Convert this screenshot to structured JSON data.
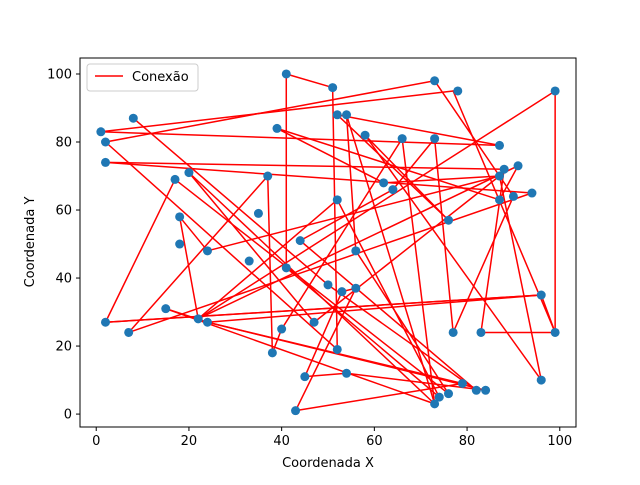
{
  "chart_data": {
    "type": "scatter",
    "title": "",
    "xlabel": "Coordenada X",
    "ylabel": "Coordenada Y",
    "xlim": [
      -3.5,
      103.5
    ],
    "ylim": [
      -3.8,
      104.7
    ],
    "xticks": [
      0,
      20,
      40,
      60,
      80,
      100
    ],
    "yticks": [
      0,
      20,
      40,
      60,
      80,
      100
    ],
    "grid": false,
    "legend": {
      "placement": "top-left",
      "entries": [
        "Conexão"
      ]
    },
    "marker_color": "#1f77b4",
    "line_color": "#ff0000",
    "points": [
      {
        "x": 41,
        "y": 100
      },
      {
        "x": 51,
        "y": 96
      },
      {
        "x": 73,
        "y": 98
      },
      {
        "x": 78,
        "y": 95
      },
      {
        "x": 99,
        "y": 95
      },
      {
        "x": 8,
        "y": 87
      },
      {
        "x": 1,
        "y": 83
      },
      {
        "x": 2,
        "y": 80
      },
      {
        "x": 39,
        "y": 84
      },
      {
        "x": 52,
        "y": 88
      },
      {
        "x": 54,
        "y": 88
      },
      {
        "x": 58,
        "y": 82
      },
      {
        "x": 66,
        "y": 81
      },
      {
        "x": 73,
        "y": 81
      },
      {
        "x": 87,
        "y": 79
      },
      {
        "x": 2,
        "y": 74
      },
      {
        "x": 91,
        "y": 73
      },
      {
        "x": 88,
        "y": 72
      },
      {
        "x": 87,
        "y": 70
      },
      {
        "x": 20,
        "y": 71
      },
      {
        "x": 17,
        "y": 69
      },
      {
        "x": 37,
        "y": 70
      },
      {
        "x": 62,
        "y": 68
      },
      {
        "x": 64,
        "y": 66
      },
      {
        "x": 94,
        "y": 65
      },
      {
        "x": 90,
        "y": 64
      },
      {
        "x": 87,
        "y": 63
      },
      {
        "x": 52,
        "y": 63
      },
      {
        "x": 35,
        "y": 59
      },
      {
        "x": 18,
        "y": 58
      },
      {
        "x": 76,
        "y": 57
      },
      {
        "x": 44,
        "y": 51
      },
      {
        "x": 18,
        "y": 50
      },
      {
        "x": 24,
        "y": 48
      },
      {
        "x": 56,
        "y": 48
      },
      {
        "x": 33,
        "y": 45
      },
      {
        "x": 41,
        "y": 43
      },
      {
        "x": 50,
        "y": 38
      },
      {
        "x": 56,
        "y": 37
      },
      {
        "x": 53,
        "y": 36
      },
      {
        "x": 96,
        "y": 35
      },
      {
        "x": 15,
        "y": 31
      },
      {
        "x": 2,
        "y": 27
      },
      {
        "x": 22,
        "y": 28
      },
      {
        "x": 24,
        "y": 27
      },
      {
        "x": 47,
        "y": 27
      },
      {
        "x": 40,
        "y": 25
      },
      {
        "x": 7,
        "y": 24
      },
      {
        "x": 77,
        "y": 24
      },
      {
        "x": 83,
        "y": 24
      },
      {
        "x": 99,
        "y": 24
      },
      {
        "x": 38,
        "y": 18
      },
      {
        "x": 52,
        "y": 19
      },
      {
        "x": 45,
        "y": 11
      },
      {
        "x": 54,
        "y": 12
      },
      {
        "x": 96,
        "y": 10
      },
      {
        "x": 79,
        "y": 9
      },
      {
        "x": 82,
        "y": 7
      },
      {
        "x": 84,
        "y": 7
      },
      {
        "x": 76,
        "y": 6
      },
      {
        "x": 74,
        "y": 5
      },
      {
        "x": 73,
        "y": 3
      },
      {
        "x": 43,
        "y": 1
      }
    ],
    "path": [
      [
        2,
        27
      ],
      [
        96,
        35
      ],
      [
        99,
        24
      ],
      [
        77,
        95
      ],
      [
        1,
        83
      ],
      [
        87,
        79
      ],
      [
        52,
        88
      ],
      [
        76,
        57
      ],
      [
        58,
        82
      ],
      [
        96,
        10
      ],
      [
        87,
        70
      ],
      [
        24,
        48
      ],
      [
        18,
        58
      ],
      [
        22,
        28
      ],
      [
        99,
        95
      ],
      [
        99,
        24
      ],
      [
        83,
        24
      ],
      [
        88,
        72
      ],
      [
        2,
        74
      ],
      [
        94,
        65
      ],
      [
        7,
        24
      ],
      [
        37,
        70
      ],
      [
        38,
        18
      ],
      [
        40,
        25
      ],
      [
        66,
        81
      ],
      [
        73,
        3
      ],
      [
        15,
        31
      ],
      [
        24,
        27
      ],
      [
        84,
        7
      ],
      [
        54,
        12
      ],
      [
        45,
        11
      ],
      [
        53,
        36
      ],
      [
        56,
        37
      ],
      [
        43,
        1
      ],
      [
        79,
        9
      ],
      [
        24,
        27
      ],
      [
        96,
        35
      ],
      [
        2,
        27
      ],
      [
        17,
        69
      ],
      [
        76,
        6
      ],
      [
        56,
        48
      ],
      [
        54,
        88
      ],
      [
        73,
        3
      ],
      [
        20,
        71
      ],
      [
        47,
        27
      ],
      [
        87,
        70
      ],
      [
        62,
        68
      ],
      [
        39,
        84
      ],
      [
        87,
        63
      ],
      [
        91,
        73
      ],
      [
        22,
        28
      ],
      [
        52,
        63
      ],
      [
        74,
        5
      ],
      [
        41,
        43
      ],
      [
        41,
        100
      ],
      [
        51,
        96
      ],
      [
        52,
        19
      ],
      [
        2,
        80
      ],
      [
        73,
        98
      ],
      [
        90,
        64
      ],
      [
        77,
        24
      ],
      [
        73,
        81
      ],
      [
        64,
        66
      ],
      [
        44,
        51
      ],
      [
        82,
        7
      ],
      [
        50,
        38
      ],
      [
        8,
        87
      ]
    ]
  }
}
